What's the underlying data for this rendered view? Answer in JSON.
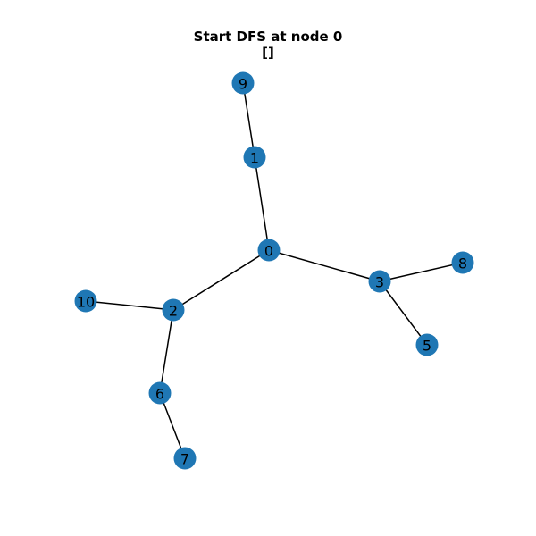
{
  "title": {
    "line1": "Start DFS at node 0",
    "line2": "[]"
  },
  "colors": {
    "node_fill": "#1f77b4",
    "edge_stroke": "#000000",
    "label_color": "#000000",
    "background": "#ffffff"
  },
  "graph": {
    "nodes": [
      {
        "id": "0",
        "label": "0"
      },
      {
        "id": "1",
        "label": "1"
      },
      {
        "id": "2",
        "label": "2"
      },
      {
        "id": "3",
        "label": "3"
      },
      {
        "id": "5",
        "label": "5"
      },
      {
        "id": "6",
        "label": "6"
      },
      {
        "id": "7",
        "label": "7"
      },
      {
        "id": "8",
        "label": "8"
      },
      {
        "id": "9",
        "label": "9"
      },
      {
        "id": "10",
        "label": "10"
      }
    ],
    "edges": [
      [
        "0",
        "1"
      ],
      [
        "1",
        "9"
      ],
      [
        "0",
        "2"
      ],
      [
        "0",
        "3"
      ],
      [
        "2",
        "10"
      ],
      [
        "2",
        "6"
      ],
      [
        "6",
        "7"
      ],
      [
        "3",
        "8"
      ],
      [
        "3",
        "5"
      ]
    ]
  }
}
